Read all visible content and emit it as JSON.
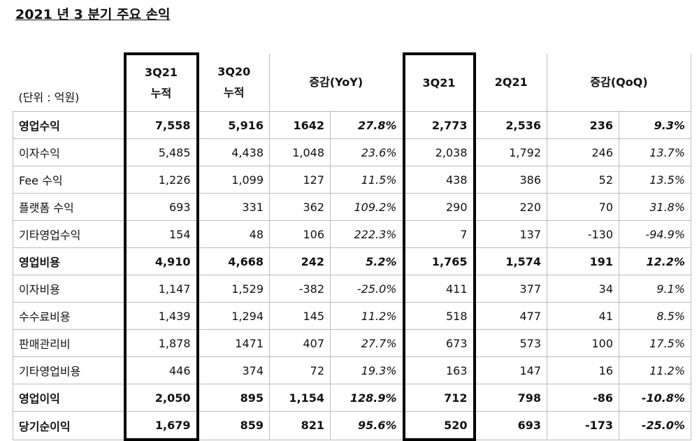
{
  "title": "2021 년 3 분기 주요 손익",
  "header": {
    "unit": "(단위 : 억원)",
    "columns": [
      [
        "3Q21",
        "누적"
      ],
      [
        "3Q20",
        "누적"
      ],
      [
        "증감(YoY)"
      ],
      [
        "3Q21"
      ],
      [
        "2Q21"
      ],
      [
        "증감(QoQ)"
      ]
    ]
  },
  "table": {
    "rows": [
      {
        "bold": true,
        "cells": [
          "영업수익",
          "7,558",
          "5,916",
          "1642",
          "27.8%",
          "2,773",
          "2,536",
          "236",
          "9.3%"
        ]
      },
      {
        "bold": false,
        "cells": [
          "이자수익",
          "5,485",
          "4,438",
          "1,048",
          "23.6%",
          "2,038",
          "1,792",
          "246",
          "13.7%"
        ]
      },
      {
        "bold": false,
        "cells": [
          "Fee 수익",
          "1,226",
          "1,099",
          "127",
          "11.5%",
          "438",
          "386",
          "52",
          "13.5%"
        ]
      },
      {
        "bold": false,
        "cells": [
          "플랫폼 수익",
          "693",
          "331",
          "362",
          "109.2%",
          "290",
          "220",
          "70",
          "31.8%"
        ]
      },
      {
        "bold": false,
        "cells": [
          "기타영업수익",
          "154",
          "48",
          "106",
          "222.3%",
          "7",
          "137",
          "-130",
          "-94.9%"
        ]
      },
      {
        "bold": true,
        "cells": [
          "영업비용",
          "4,910",
          "4,668",
          "242",
          "5.2%",
          "1,765",
          "1,574",
          "191",
          "12.2%"
        ]
      },
      {
        "bold": false,
        "cells": [
          "이자비용",
          "1,147",
          "1,529",
          "-382",
          "-25.0%",
          "411",
          "377",
          "34",
          "9.1%"
        ]
      },
      {
        "bold": false,
        "cells": [
          "수수료비용",
          "1,439",
          "1,294",
          "145",
          "11.2%",
          "518",
          "477",
          "41",
          "8.5%"
        ]
      },
      {
        "bold": false,
        "cells": [
          "판매관리비",
          "1,878",
          "1471",
          "407",
          "27.7%",
          "673",
          "573",
          "100",
          "17.5%"
        ]
      },
      {
        "bold": false,
        "cells": [
          "기타영업비용",
          "446",
          "374",
          "72",
          "19.3%",
          "163",
          "147",
          "16",
          "11.2%"
        ]
      },
      {
        "bold": true,
        "cells": [
          "영업이익",
          "2,050",
          "895",
          "1,154",
          "128.9%",
          "712",
          "798",
          "-86",
          "-10.8%"
        ]
      },
      {
        "bold": true,
        "cells": [
          "당기순이익",
          "1,679",
          "859",
          "821",
          "95.6%",
          "520",
          "693",
          "-173",
          "-25.0%"
        ]
      }
    ]
  }
}
